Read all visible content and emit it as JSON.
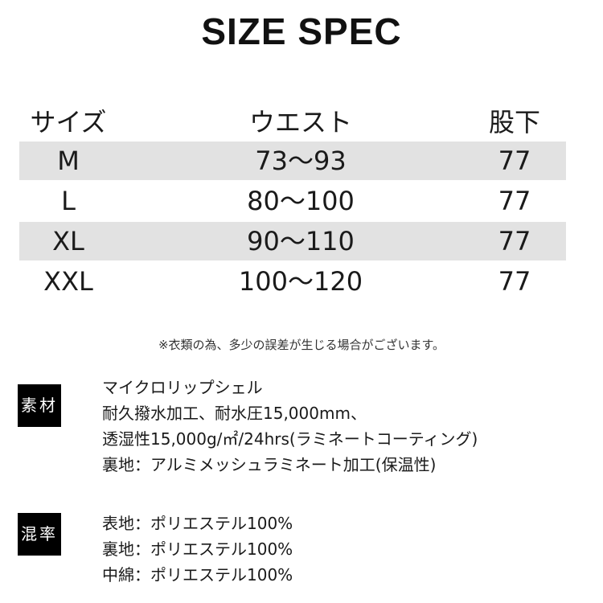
{
  "title": "SIZE SPEC",
  "table": {
    "headers": [
      "サイズ",
      "ウエスト",
      "股下"
    ],
    "rows": [
      [
        "M",
        "73〜93",
        "77"
      ],
      [
        "L",
        "80〜100",
        "77"
      ],
      [
        "XL",
        "90〜110",
        "77"
      ],
      [
        "XXL",
        "100〜120",
        "77"
      ]
    ],
    "shade_color": "#e2e2e2"
  },
  "note": "※衣類の為、多少の誤差が生じる場合がございます。",
  "material": {
    "label": "素材",
    "lines": [
      "マイクロリップシェル",
      "耐久撥水加工、耐水圧15,000mm、",
      "透湿性15,000g/㎡/24hrs(ラミネートコーティング)",
      "裏地：アルミメッシュラミネート加工(保温性)"
    ]
  },
  "composition": {
    "label": "混率",
    "lines": [
      "表地：ポリエステル100%",
      "裏地：ポリエステル100%",
      "中綿：ポリエステル100%"
    ]
  }
}
